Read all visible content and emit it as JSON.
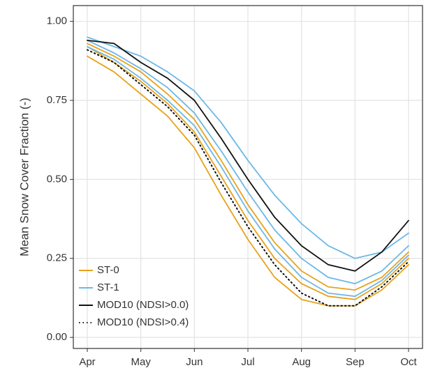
{
  "chart_data": {
    "type": "line",
    "y_label": "Mean Snow Cover Fraction (-)",
    "categories": [
      "Apr",
      null,
      "May",
      null,
      "Jun",
      null,
      "Jul",
      null,
      "Aug",
      null,
      "Sep",
      null,
      "Oct"
    ],
    "ylim": [
      -0.035,
      1.05
    ],
    "yticks": [
      {
        "value": 0,
        "label": "0.00"
      },
      {
        "value": 0.25,
        "label": "0.25"
      },
      {
        "value": 0.5,
        "label": "0.50"
      },
      {
        "value": 0.75,
        "label": "0.75"
      },
      {
        "value": 1,
        "label": "1.00"
      }
    ],
    "grid": true,
    "legend": "bottom-left",
    "series": [
      {
        "name": "ST-0",
        "color": "#e8a21a",
        "linestyle": "solid",
        "values": [
          [
            0.89,
            0.84,
            0.77,
            0.7,
            0.6,
            0.45,
            0.31,
            0.19,
            0.12,
            0.1,
            0.1,
            0.15,
            0.23
          ],
          [
            0.92,
            0.87,
            0.81,
            0.74,
            0.65,
            0.51,
            0.37,
            0.25,
            0.17,
            0.13,
            0.12,
            0.17,
            0.25
          ],
          [
            0.93,
            0.89,
            0.84,
            0.77,
            0.69,
            0.56,
            0.42,
            0.3,
            0.21,
            0.16,
            0.15,
            0.19,
            0.27
          ]
        ]
      },
      {
        "name": "ST-1",
        "color": "#6cb8e6",
        "linestyle": "solid",
        "values": [
          [
            0.92,
            0.88,
            0.82,
            0.75,
            0.67,
            0.54,
            0.4,
            0.28,
            0.19,
            0.14,
            0.13,
            0.18,
            0.26
          ],
          [
            0.94,
            0.9,
            0.85,
            0.79,
            0.71,
            0.59,
            0.46,
            0.34,
            0.25,
            0.19,
            0.17,
            0.21,
            0.29
          ],
          [
            0.95,
            0.92,
            0.89,
            0.84,
            0.78,
            0.68,
            0.56,
            0.45,
            0.36,
            0.29,
            0.25,
            0.27,
            0.33
          ]
        ]
      },
      {
        "name": "MOD10 (NDSI>0.0)",
        "color": "#111111",
        "linestyle": "solid",
        "values": [
          [
            0.94,
            0.93,
            0.87,
            0.82,
            0.75,
            0.63,
            0.5,
            0.38,
            0.29,
            0.23,
            0.21,
            0.27,
            0.37
          ]
        ]
      },
      {
        "name": "MOD10 (NDSI>0.4)",
        "color": "#111111",
        "linestyle": "dotted",
        "values": [
          [
            0.91,
            0.87,
            0.8,
            0.73,
            0.64,
            0.49,
            0.35,
            0.23,
            0.14,
            0.1,
            0.1,
            0.16,
            0.24
          ]
        ]
      }
    ]
  }
}
